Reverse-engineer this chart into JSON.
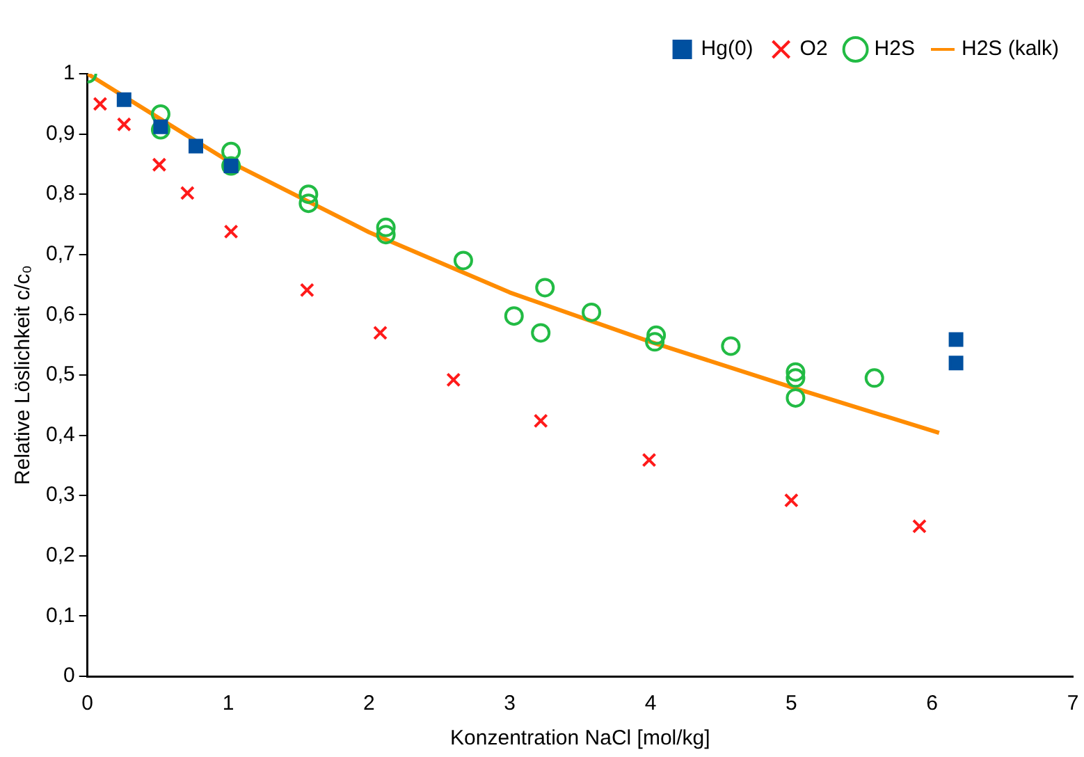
{
  "chart_data": {
    "type": "scatter",
    "xlabel": "Konzentration NaCl [mol/kg]",
    "ylabel": "Relative Löslichkeit c/c₀",
    "xlim": [
      0,
      7
    ],
    "xticks": [
      0,
      1,
      2,
      3,
      4,
      5,
      6,
      7
    ],
    "ylim": [
      0,
      1
    ],
    "yticks": [
      0,
      {
        "value": 0.1,
        "label": "0,1"
      },
      {
        "value": 0.2,
        "label": "0,2"
      },
      {
        "value": 0.3,
        "label": "0,3"
      },
      {
        "value": 0.4,
        "label": "0,4"
      },
      {
        "value": 0.5,
        "label": "0,5"
      },
      {
        "value": 0.6,
        "label": "0,6"
      },
      {
        "value": 0.7,
        "label": "0,7"
      },
      {
        "value": 0.8,
        "label": "0,8"
      },
      {
        "value": 0.9,
        "label": "0,9"
      },
      1
    ],
    "grid": false,
    "legend": "top right",
    "series": [
      {
        "name": "Hg(0)",
        "color": "#0050a0",
        "marker": "square",
        "x": [
          0.26,
          0.52,
          0.77,
          1.02,
          6.17,
          6.17
        ],
        "values": [
          0.957,
          0.912,
          0.88,
          0.847,
          0.559,
          0.52
        ]
      },
      {
        "name": "O2",
        "color": "#ff1a1a",
        "marker": "cross",
        "x": [
          0.09,
          0.26,
          0.51,
          0.71,
          1.02,
          1.56,
          2.08,
          2.6,
          3.22,
          3.99,
          5.0,
          5.91
        ],
        "values": [
          0.95,
          0.916,
          0.849,
          0.802,
          0.738,
          0.641,
          0.57,
          0.492,
          0.424,
          0.359,
          0.292,
          0.249
        ]
      },
      {
        "name": "H2S",
        "color": "#22bb44",
        "marker": "circle",
        "x": [
          0,
          0.52,
          0.52,
          1.02,
          1.02,
          1.57,
          1.57,
          2.12,
          2.12,
          2.67,
          3.03,
          3.25,
          3.22,
          3.58,
          4.04,
          4.03,
          4.57,
          5.03,
          5.03,
          5.03,
          5.59
        ],
        "values": [
          1.0,
          0.933,
          0.907,
          0.871,
          0.847,
          0.8,
          0.785,
          0.745,
          0.733,
          0.69,
          0.598,
          0.645,
          0.57,
          0.604,
          0.566,
          0.555,
          0.548,
          0.505,
          0.495,
          0.462,
          0.495
        ]
      },
      {
        "name": "H2S (kalk)",
        "type": "line",
        "color": "#ff8c00",
        "marker": "none",
        "x": [
          0,
          1,
          2,
          3,
          4,
          5,
          6.05
        ],
        "values": [
          1.0,
          0.855,
          0.737,
          0.637,
          0.555,
          0.48,
          0.404
        ]
      }
    ]
  }
}
